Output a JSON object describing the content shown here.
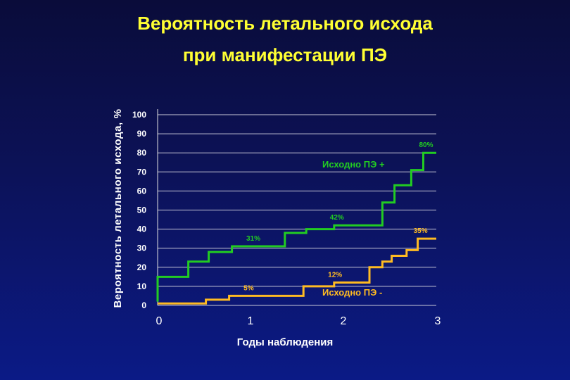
{
  "title_line1": "Вероятность летального исхода",
  "title_line2": "при манифестации ПЭ",
  "chart_data": {
    "type": "line",
    "step": true,
    "xlabel": "Годы наблюдения",
    "ylabel": "Вероятность летального исхода, %",
    "xlim": [
      0,
      3
    ],
    "ylim": [
      0,
      100
    ],
    "x_ticks": [
      "0",
      "1",
      "2",
      "3"
    ],
    "y_ticks": [
      "0",
      "10",
      "20",
      "30",
      "40",
      "50",
      "60",
      "70",
      "80",
      "90",
      "100"
    ],
    "grid": true,
    "series": [
      {
        "name": "Исходно ПЭ +",
        "color": "#22cc22",
        "points": [
          [
            0,
            2
          ],
          [
            0,
            15
          ],
          [
            0.33,
            15
          ],
          [
            0.33,
            23
          ],
          [
            0.55,
            23
          ],
          [
            0.55,
            28
          ],
          [
            0.8,
            28
          ],
          [
            0.8,
            31
          ],
          [
            1.37,
            31
          ],
          [
            1.37,
            38
          ],
          [
            1.6,
            38
          ],
          [
            1.6,
            40
          ],
          [
            1.9,
            40
          ],
          [
            1.9,
            42
          ],
          [
            2.42,
            42
          ],
          [
            2.42,
            54
          ],
          [
            2.55,
            54
          ],
          [
            2.55,
            63
          ],
          [
            2.73,
            63
          ],
          [
            2.73,
            71
          ],
          [
            2.86,
            71
          ],
          [
            2.86,
            80
          ],
          [
            3,
            80
          ]
        ],
        "labels": [
          {
            "x": 1.0,
            "y": 31,
            "text": "31%"
          },
          {
            "x": 1.9,
            "y": 42,
            "text": "42%"
          },
          {
            "x": 2.86,
            "y": 80,
            "text": "80%"
          }
        ]
      },
      {
        "name": "Исходно ПЭ -",
        "color": "#ffbb22",
        "points": [
          [
            0,
            1
          ],
          [
            0.52,
            1
          ],
          [
            0.52,
            3
          ],
          [
            0.77,
            3
          ],
          [
            0.77,
            5
          ],
          [
            1.57,
            5
          ],
          [
            1.57,
            10
          ],
          [
            1.9,
            10
          ],
          [
            1.9,
            12
          ],
          [
            2.28,
            12
          ],
          [
            2.28,
            20
          ],
          [
            2.42,
            20
          ],
          [
            2.42,
            23
          ],
          [
            2.52,
            23
          ],
          [
            2.52,
            26
          ],
          [
            2.68,
            26
          ],
          [
            2.68,
            29
          ],
          [
            2.8,
            29
          ],
          [
            2.8,
            35
          ],
          [
            3,
            35
          ]
        ],
        "labels": [
          {
            "x": 0.95,
            "y": 5,
            "text": "5%"
          },
          {
            "x": 1.88,
            "y": 12,
            "text": "12%"
          },
          {
            "x": 2.8,
            "y": 35,
            "text": "35%"
          }
        ]
      }
    ]
  }
}
